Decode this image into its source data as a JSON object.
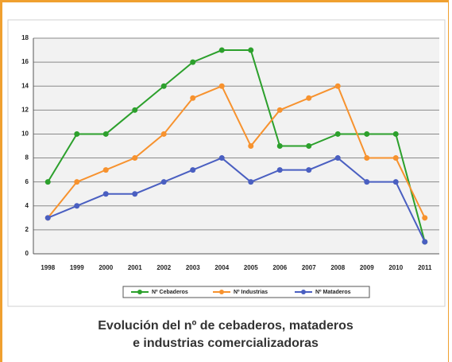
{
  "chart_data": {
    "type": "line",
    "title": "Evolución del nº de cebaderos, mataderos",
    "subtitle": "e industrias comercializadoras",
    "categories": [
      "1998",
      "1999",
      "2000",
      "2001",
      "2002",
      "2003",
      "2004",
      "2005",
      "2006",
      "2007",
      "2008",
      "2009",
      "2010",
      "2011"
    ],
    "series": [
      {
        "name": "Nº Cebaderos",
        "color": "#2ca02c",
        "values": [
          6,
          10,
          10,
          12,
          14,
          16,
          17,
          17,
          9,
          9,
          10,
          10,
          10,
          1
        ]
      },
      {
        "name": "Nº Industrias",
        "color": "#f7922e",
        "values": [
          3,
          6,
          7,
          8,
          10,
          13,
          14,
          9,
          12,
          13,
          14,
          8,
          8,
          3
        ]
      },
      {
        "name": "Nº Mataderos",
        "color": "#4a5fc1",
        "values": [
          3,
          4,
          5,
          5,
          6,
          7,
          8,
          6,
          7,
          7,
          8,
          6,
          6,
          1
        ]
      }
    ],
    "ylim": [
      0,
      18
    ],
    "yticks": [
      0,
      2,
      4,
      6,
      8,
      10,
      12,
      14,
      16,
      18
    ],
    "grid": true
  }
}
